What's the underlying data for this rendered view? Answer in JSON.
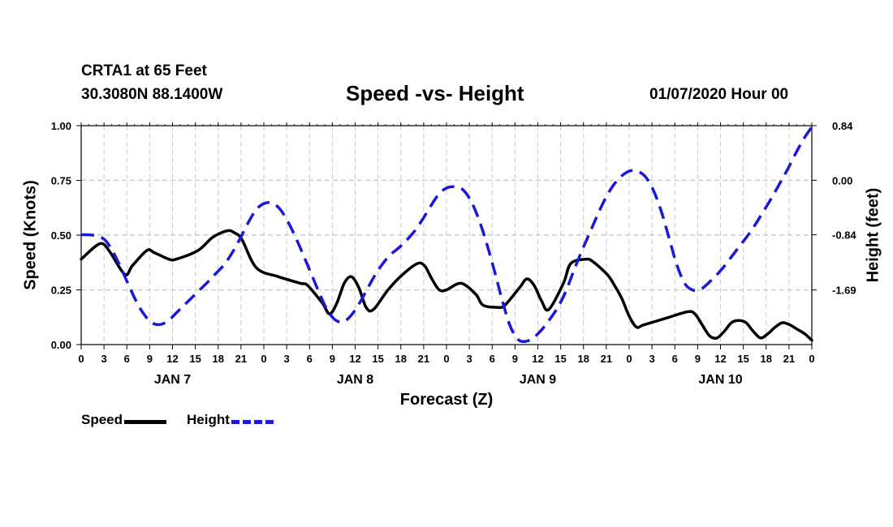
{
  "header": {
    "station": "CRTA1 at 65 Feet",
    "coords": "30.3080N 88.1400W",
    "title": "Speed -vs- Height",
    "timestamp": "01/07/2020 Hour 00"
  },
  "colors": {
    "speed": "#000000",
    "height": "#1a1ad6",
    "grid": "#c8c8c8"
  },
  "chart_data": {
    "type": "line",
    "title": "Speed -vs- Height",
    "xlabel": "Forecast (Z)",
    "ylabel": "Speed (Knots)",
    "y2label": "Height (feet)",
    "x_range_hours": [
      0,
      96
    ],
    "x_tick_step_hours": 3,
    "x_tick_labels": [
      "0",
      "3",
      "6",
      "9",
      "12",
      "15",
      "18",
      "21",
      "0",
      "3",
      "6",
      "9",
      "12",
      "15",
      "18",
      "21",
      "0",
      "3",
      "6",
      "9",
      "12",
      "15",
      "18",
      "21",
      "0",
      "3",
      "6",
      "9",
      "12",
      "15",
      "18",
      "21",
      "0"
    ],
    "day_labels": [
      {
        "hour": 12,
        "label": "JAN 7"
      },
      {
        "hour": 36,
        "label": "JAN 8"
      },
      {
        "hour": 60,
        "label": "JAN 9"
      },
      {
        "hour": 84,
        "label": "JAN 10"
      }
    ],
    "ylim": [
      0,
      1
    ],
    "y_ticks": [
      0,
      0.25,
      0.5,
      0.75,
      1.0
    ],
    "y_tick_labels": [
      "0.00",
      "0.25",
      "0.50",
      "0.75",
      "1.00"
    ],
    "y2lim": [
      -2.53,
      0.84
    ],
    "y2_ticks": [
      -1.69,
      -0.84,
      0.0,
      0.84
    ],
    "y2_tick_labels": [
      "-1.69",
      "-0.84",
      "0.00",
      "0.84"
    ],
    "grid": true,
    "legend_position": "bottom-left",
    "series": [
      {
        "name": "Speed",
        "axis": "left",
        "style": "solid",
        "points": [
          [
            0,
            0.39
          ],
          [
            2,
            0.45
          ],
          [
            3,
            0.46
          ],
          [
            4,
            0.42
          ],
          [
            6,
            0.32
          ],
          [
            7,
            0.36
          ],
          [
            9,
            0.43
          ],
          [
            10,
            0.42
          ],
          [
            12,
            0.39
          ],
          [
            13,
            0.39
          ],
          [
            16,
            0.43
          ],
          [
            18,
            0.49
          ],
          [
            20,
            0.52
          ],
          [
            21,
            0.51
          ],
          [
            22,
            0.48
          ],
          [
            24,
            0.35
          ],
          [
            27,
            0.31
          ],
          [
            30,
            0.28
          ],
          [
            31,
            0.27
          ],
          [
            33,
            0.19
          ],
          [
            34,
            0.14
          ],
          [
            35,
            0.19
          ],
          [
            36,
            0.28
          ],
          [
            37,
            0.31
          ],
          [
            38,
            0.26
          ],
          [
            39,
            0.17
          ],
          [
            40,
            0.16
          ],
          [
            42,
            0.25
          ],
          [
            44,
            0.32
          ],
          [
            46,
            0.37
          ],
          [
            47,
            0.36
          ],
          [
            48,
            0.3
          ],
          [
            49,
            0.25
          ],
          [
            50,
            0.25
          ],
          [
            52,
            0.28
          ],
          [
            54,
            0.23
          ],
          [
            55,
            0.18
          ],
          [
            57,
            0.17
          ],
          [
            58,
            0.18
          ],
          [
            60,
            0.26
          ],
          [
            61,
            0.3
          ],
          [
            62,
            0.27
          ],
          [
            63,
            0.2
          ],
          [
            64,
            0.16
          ],
          [
            66,
            0.28
          ],
          [
            67,
            0.37
          ],
          [
            69,
            0.39
          ],
          [
            70,
            0.38
          ],
          [
            72,
            0.32
          ],
          [
            73,
            0.27
          ],
          [
            74,
            0.21
          ],
          [
            75,
            0.13
          ],
          [
            76,
            0.08
          ],
          [
            77,
            0.09
          ],
          [
            80,
            0.12
          ],
          [
            83,
            0.15
          ],
          [
            84,
            0.14
          ],
          [
            85,
            0.09
          ],
          [
            86,
            0.04
          ],
          [
            87,
            0.03
          ],
          [
            88,
            0.06
          ],
          [
            89,
            0.1
          ],
          [
            90,
            0.11
          ],
          [
            91,
            0.1
          ],
          [
            92,
            0.06
          ],
          [
            93,
            0.03
          ],
          [
            94,
            0.05
          ],
          [
            95,
            0.08
          ],
          [
            96,
            0.1
          ],
          [
            97,
            0.09
          ],
          [
            98,
            0.07
          ],
          [
            99,
            0.05
          ],
          [
            100,
            0.02
          ]
        ],
        "points_x_note": "x in forecast hours from 0Z JAN 7 (0-96); scaled x = hour*96/100"
      },
      {
        "name": "Height",
        "axis": "right",
        "style": "dashed",
        "points": [
          [
            0,
            -0.84
          ],
          [
            1,
            -0.84
          ],
          [
            2,
            -0.86
          ],
          [
            3,
            -0.92
          ],
          [
            4,
            -1.1
          ],
          [
            5,
            -1.35
          ],
          [
            6,
            -1.62
          ],
          [
            7,
            -1.88
          ],
          [
            8,
            -2.08
          ],
          [
            9,
            -2.2
          ],
          [
            10,
            -2.22
          ],
          [
            11,
            -2.16
          ],
          [
            12,
            -2.04
          ],
          [
            13,
            -1.92
          ],
          [
            14,
            -1.8
          ],
          [
            15,
            -1.68
          ],
          [
            16,
            -1.56
          ],
          [
            17,
            -1.43
          ],
          [
            18,
            -1.3
          ],
          [
            19,
            -1.12
          ],
          [
            20,
            -0.9
          ],
          [
            21,
            -0.66
          ],
          [
            22,
            -0.46
          ],
          [
            23,
            -0.36
          ],
          [
            24,
            -0.35
          ],
          [
            25,
            -0.44
          ],
          [
            26,
            -0.63
          ],
          [
            27,
            -0.88
          ],
          [
            28,
            -1.16
          ],
          [
            29,
            -1.45
          ],
          [
            30,
            -1.74
          ],
          [
            31,
            -2.0
          ],
          [
            32,
            -2.15
          ],
          [
            33,
            -2.18
          ],
          [
            34,
            -2.08
          ],
          [
            35,
            -1.9
          ],
          [
            36,
            -1.68
          ],
          [
            37,
            -1.46
          ],
          [
            38,
            -1.28
          ],
          [
            39,
            -1.14
          ],
          [
            40,
            -1.04
          ],
          [
            41,
            -0.92
          ],
          [
            42,
            -0.78
          ],
          [
            43,
            -0.6
          ],
          [
            44,
            -0.4
          ],
          [
            45,
            -0.22
          ],
          [
            46,
            -0.12
          ],
          [
            47,
            -0.1
          ],
          [
            48,
            -0.14
          ],
          [
            49,
            -0.3
          ],
          [
            50,
            -0.58
          ],
          [
            51,
            -0.95
          ],
          [
            52,
            -1.38
          ],
          [
            53,
            -1.84
          ],
          [
            54,
            -2.24
          ],
          [
            55,
            -2.45
          ],
          [
            56,
            -2.48
          ],
          [
            57,
            -2.42
          ],
          [
            58,
            -2.3
          ],
          [
            59,
            -2.14
          ],
          [
            60,
            -1.96
          ],
          [
            61,
            -1.72
          ],
          [
            62,
            -1.4
          ],
          [
            63,
            -1.1
          ],
          [
            64,
            -0.82
          ],
          [
            65,
            -0.54
          ],
          [
            66,
            -0.28
          ],
          [
            67,
            -0.08
          ],
          [
            68,
            0.06
          ],
          [
            69,
            0.14
          ],
          [
            70,
            0.14
          ],
          [
            71,
            0.06
          ],
          [
            72,
            -0.14
          ],
          [
            73,
            -0.46
          ],
          [
            74,
            -0.88
          ],
          [
            75,
            -1.3
          ],
          [
            76,
            -1.59
          ],
          [
            77,
            -1.69
          ],
          [
            78,
            -1.68
          ],
          [
            79,
            -1.58
          ],
          [
            80,
            -1.46
          ],
          [
            81,
            -1.32
          ],
          [
            82,
            -1.16
          ],
          [
            83,
            -1.0
          ],
          [
            84,
            -0.84
          ],
          [
            85,
            -0.66
          ],
          [
            86,
            -0.46
          ],
          [
            87,
            -0.26
          ],
          [
            88,
            -0.04
          ],
          [
            89,
            0.18
          ],
          [
            90,
            0.42
          ],
          [
            91,
            0.64
          ],
          [
            92,
            0.82
          ]
        ],
        "points_x_note": "x in sampled hours (0-92) across full chart width; plotted by index scaling to 0-96"
      }
    ]
  },
  "legend": {
    "speed_label": "Speed",
    "height_label": "Height"
  }
}
